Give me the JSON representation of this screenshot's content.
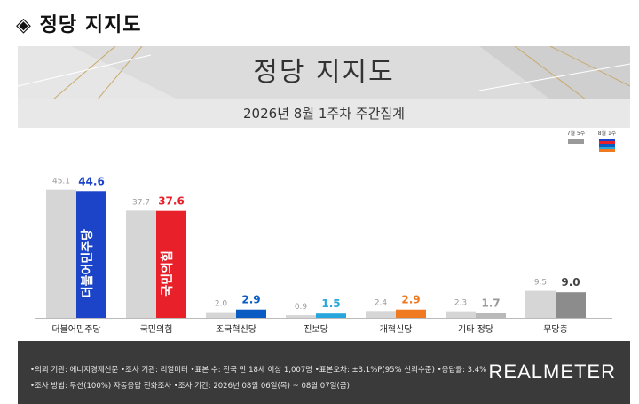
{
  "heading": "◈ 정당 지지도",
  "banner_title": "정당 지지도",
  "subtitle": "2026년 8월 1주차 주간집계",
  "legend": {
    "prev": "7월 5주",
    "curr": "8월 1주"
  },
  "chart_data": {
    "type": "bar",
    "title": "정당 지지도",
    "subtitle": "2026년 8월 1주차 주간집계",
    "categories": [
      "더불어민주당",
      "국민의힘",
      "조국혁신당",
      "진보당",
      "개혁신당",
      "기타 정당",
      "무당층"
    ],
    "series": [
      {
        "name": "7월 5주",
        "values": [
          45.1,
          37.7,
          2.0,
          0.9,
          2.4,
          2.3,
          9.5
        ],
        "color": "#d6d6d6"
      },
      {
        "name": "8월 1주",
        "values": [
          44.6,
          37.6,
          2.9,
          1.5,
          2.9,
          1.7,
          9.0
        ],
        "colors": [
          "#1b44c8",
          "#e8202a",
          "#0a5cc2",
          "#26a6dd",
          "#f07a22",
          "#b9b9b9",
          "#8c8c8c"
        ]
      }
    ],
    "prev_label_color": "#9a9a9a",
    "curr_label_colors": [
      "#1b44c8",
      "#e8202a",
      "#0a5cc2",
      "#26a6dd",
      "#f07a22",
      "#9a9a9a",
      "#444444"
    ],
    "bar_logos": [
      "더불어민주당",
      "국민의힘",
      "",
      "",
      "",
      "",
      ""
    ],
    "ylim": [
      0,
      50
    ]
  },
  "footer": {
    "line1": "•의뢰 기관: 에너지경제신문  •조사 기관: 리얼미터 •표본 수: 전국 만 18세 이상 1,007명 •표본오차: ±3.1%P(95% 신뢰수준) •응답률: 3.4%",
    "line2": "•조사 방법: 무선(100%) 자동응답 전화조사 •조사 기간: 2026년 08월 06일(목) ~ 08월 07일(금)",
    "logo": "REALMETER"
  }
}
